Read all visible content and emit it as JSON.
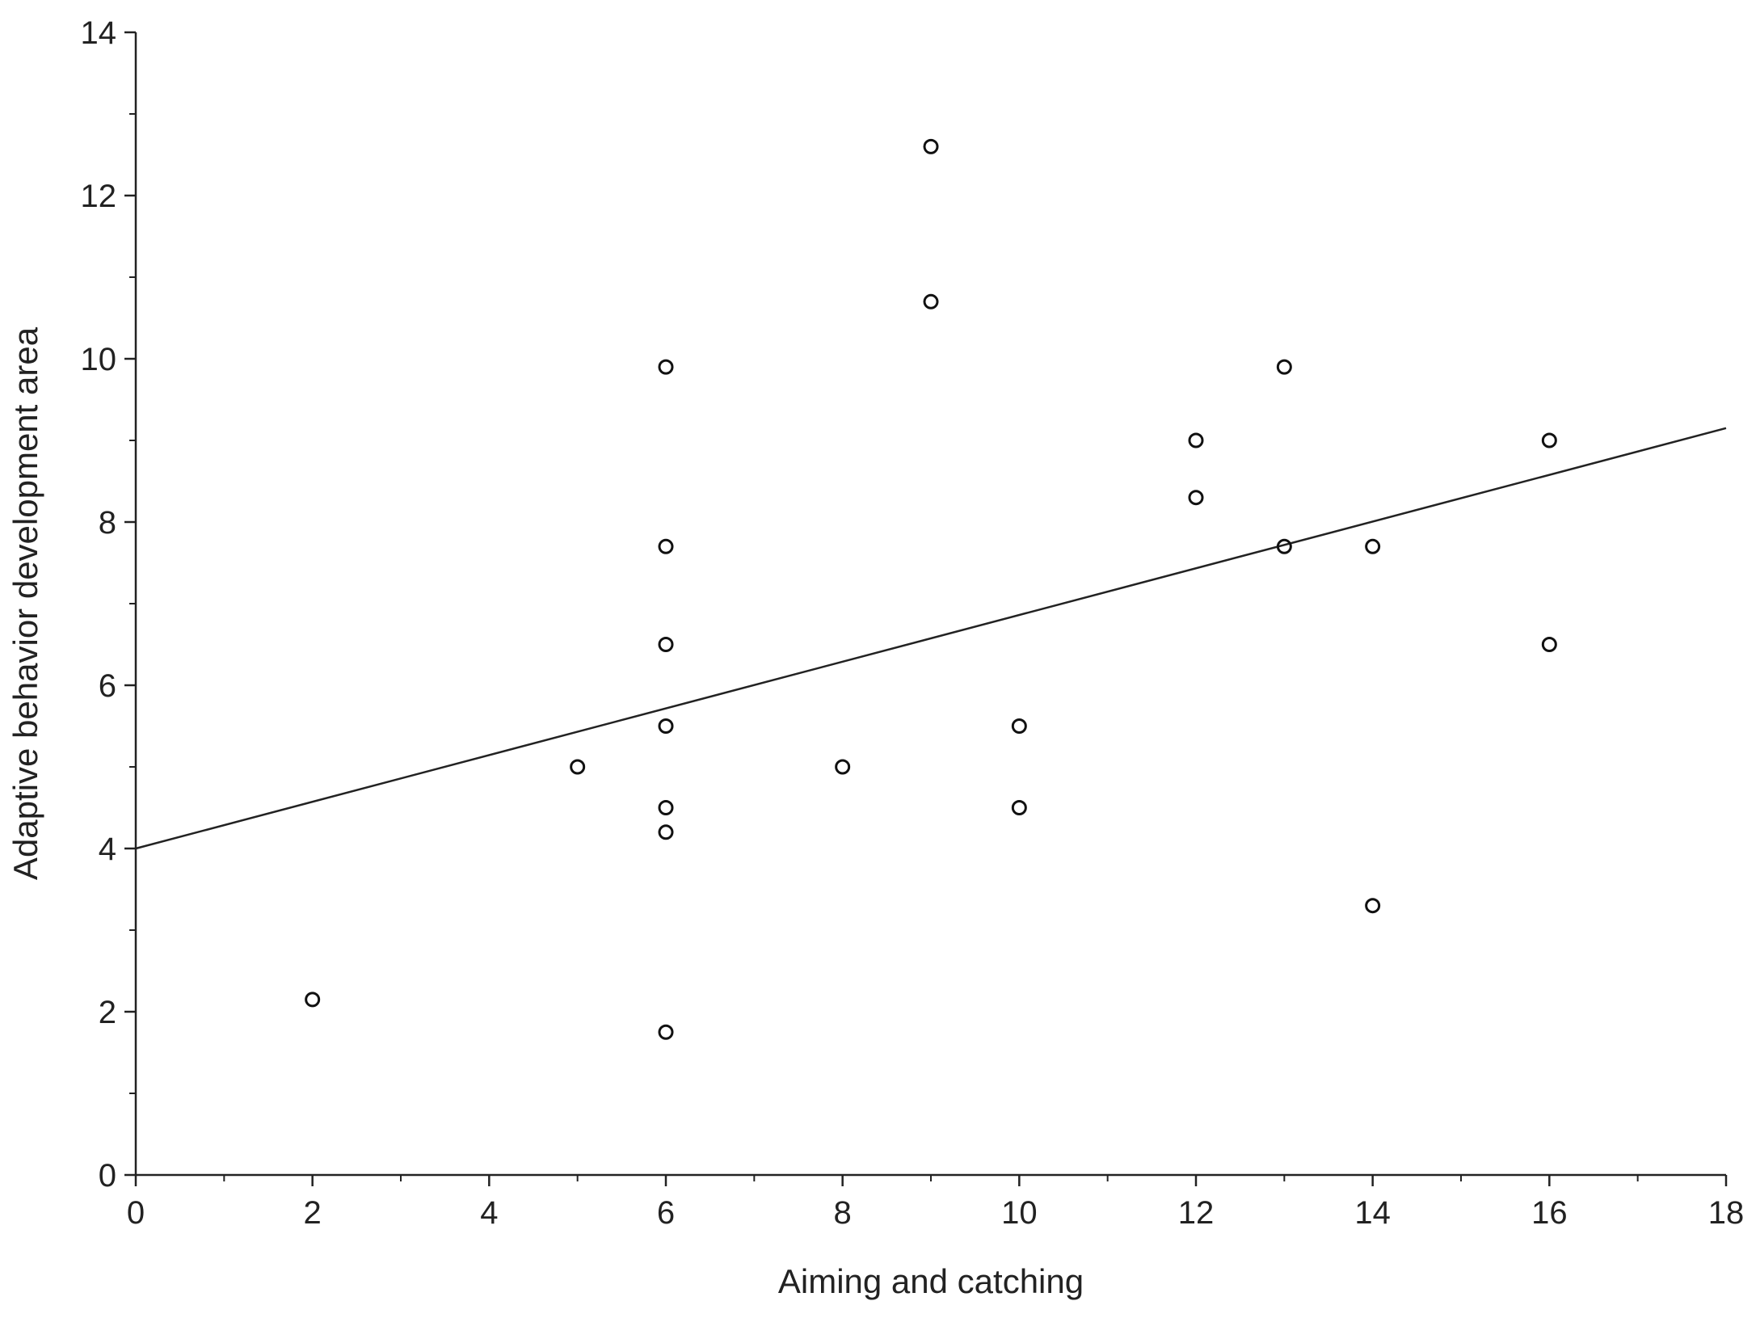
{
  "chart_data": {
    "type": "scatter",
    "title": "",
    "xlabel": "Aiming and catching",
    "ylabel": "Adaptive behavior development area",
    "xlim": [
      0,
      18
    ],
    "ylim": [
      0,
      14
    ],
    "x_ticks": [
      "0",
      "2",
      "4",
      "6",
      "8",
      "10",
      "12",
      "14",
      "16",
      "18"
    ],
    "y_ticks": [
      "0",
      "2",
      "4",
      "6",
      "8",
      "10",
      "12",
      "14"
    ],
    "grid": false,
    "legend": "none",
    "series": [
      {
        "points": [
          {
            "x": 2,
            "y": 2.15
          },
          {
            "x": 5,
            "y": 5.0
          },
          {
            "x": 6,
            "y": 9.9
          },
          {
            "x": 6,
            "y": 7.7
          },
          {
            "x": 6,
            "y": 6.5
          },
          {
            "x": 6,
            "y": 5.5
          },
          {
            "x": 6,
            "y": 4.5
          },
          {
            "x": 6,
            "y": 4.2
          },
          {
            "x": 6,
            "y": 1.75
          },
          {
            "x": 8,
            "y": 5.0
          },
          {
            "x": 9,
            "y": 12.6
          },
          {
            "x": 9,
            "y": 10.7
          },
          {
            "x": 10,
            "y": 5.5
          },
          {
            "x": 10,
            "y": 4.5
          },
          {
            "x": 12,
            "y": 9.0
          },
          {
            "x": 12,
            "y": 8.3
          },
          {
            "x": 13,
            "y": 9.9
          },
          {
            "x": 13,
            "y": 7.7
          },
          {
            "x": 14,
            "y": 7.7
          },
          {
            "x": 14,
            "y": 3.3
          },
          {
            "x": 16,
            "y": 9.0
          },
          {
            "x": 16,
            "y": 6.5
          }
        ]
      }
    ],
    "fit_line": {
      "x": [
        0,
        18
      ],
      "y": [
        4.0,
        9.15
      ]
    }
  }
}
